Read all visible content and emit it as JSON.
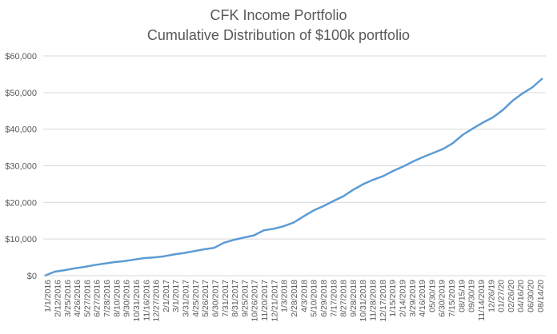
{
  "chart_data": {
    "type": "line",
    "title": "CFK Income Portfolio",
    "subtitle": "Cumulative Distribution of $100k portfolio",
    "xlabel": "",
    "ylabel": "",
    "ylim": [
      0,
      60000
    ],
    "yticks": [
      "$0",
      "$10,000",
      "$20,000",
      "$30,000",
      "$40,000",
      "$50,000",
      "$60,000"
    ],
    "grid": true,
    "legend": "none",
    "line_color": "#5B9BD5",
    "grid_color": "#D9D9D9",
    "x_tick_labels": [
      "1/1/2016",
      "2/12/2016",
      "3/25/2016",
      "4/26/2016",
      "5/27/2016",
      "6/27/2016",
      "7/28/2016",
      "8/10/2016",
      "9/30/2016",
      "10/31/2016",
      "11/16/2016",
      "12/27/2016",
      "2/1/2017",
      "3/1/2017",
      "3/31/2017",
      "4/25/2017",
      "5/26/2017",
      "6/30/2017",
      "7/31/2017",
      "8/31/2017",
      "9/25/2017",
      "10/26/2017",
      "11/20/2017",
      "12/21/2017",
      "1/3/2018",
      "2/28/2018",
      "4/3/2018",
      "5/10/2018",
      "6/29/2018",
      "7/17/2018",
      "8/27/2018",
      "9/28/2018",
      "10/31/2018",
      "11/28/2018",
      "12/17/2018",
      "1/15/2019",
      "2/14/2019",
      "3/29/2019",
      "4/16/2019",
      "05/30/19",
      "6/30/2019",
      "7/15/2019",
      "08/15/19",
      "09/30/19",
      "11/14/2019",
      "12/26/19",
      "01/27/20",
      "02/26/20",
      "04/16/20",
      "06/30/20",
      "08/14/20"
    ],
    "series": [
      {
        "values": [
          0,
          1100,
          1500,
          2000,
          2400,
          2900,
          3300,
          3700,
          4000,
          4400,
          4800,
          5000,
          5300,
          5800,
          6200,
          6700,
          7200,
          7600,
          9000,
          9800,
          10400,
          11000,
          12400,
          12800,
          13500,
          14500,
          16200,
          17800,
          19000,
          20400,
          21700,
          23500,
          25000,
          26200,
          27200,
          28600,
          29800,
          31200,
          32400,
          33500,
          34600,
          36200,
          38500,
          40200,
          41800,
          43200,
          45200,
          47800,
          49800,
          51500,
          53900
        ]
      }
    ]
  }
}
